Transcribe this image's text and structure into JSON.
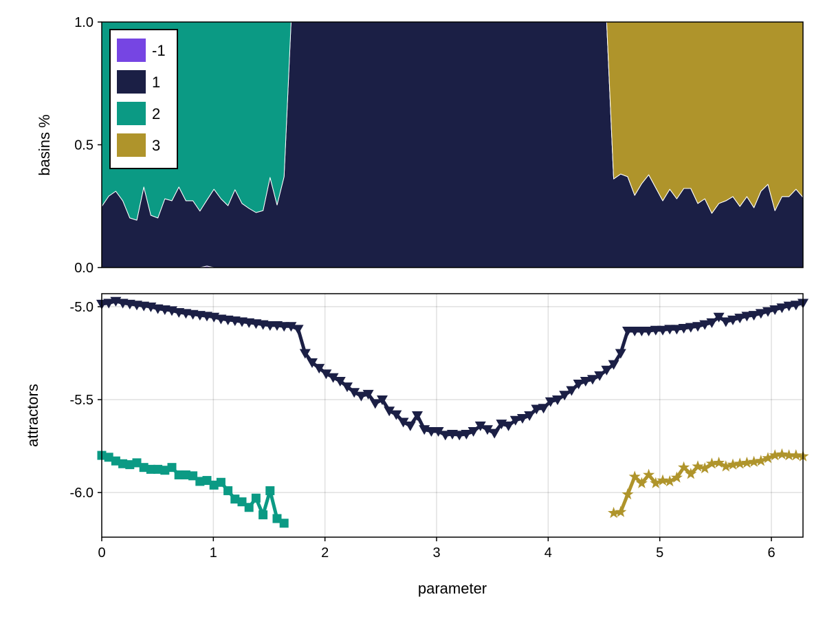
{
  "chart_data": [
    {
      "type": "area",
      "stacked": true,
      "ylabel": "basins %",
      "xlabel": "",
      "xlim": [
        0,
        6.2832
      ],
      "ylim": [
        0,
        1
      ],
      "yticks": [
        "0.0",
        "0.5",
        "1.0"
      ],
      "grid": false,
      "legend_placement": "top-left",
      "x": {
        "start": 0,
        "stop": 6.2832,
        "length": 101
      },
      "series": [
        {
          "name": "-1",
          "color": "#7645e3",
          "values": [
            0,
            0,
            0,
            0,
            0,
            0,
            0,
            0,
            0,
            0,
            0,
            0,
            0,
            0,
            0,
            0.006,
            0,
            0,
            0,
            0,
            0,
            0,
            0,
            0,
            0,
            0,
            0,
            0,
            0,
            0,
            0,
            0,
            0,
            0,
            0,
            0,
            0,
            0,
            0,
            0,
            0,
            0,
            0,
            0,
            0,
            0,
            0,
            0,
            0,
            0,
            0,
            0,
            0,
            0,
            0,
            0,
            0,
            0,
            0,
            0,
            0,
            0,
            0,
            0,
            0,
            0,
            0,
            0,
            0,
            0,
            0,
            0,
            0,
            0,
            0,
            0,
            0,
            0,
            0,
            0,
            0,
            0,
            0,
            0,
            0,
            0,
            0,
            0,
            0,
            0,
            0,
            0,
            0,
            0,
            0,
            0,
            0,
            0,
            0,
            0,
            0
          ]
        },
        {
          "name": "1",
          "color": "#1b1f45",
          "values": [
            0.249,
            0.291,
            0.311,
            0.272,
            0.202,
            0.193,
            0.328,
            0.213,
            0.202,
            0.28,
            0.272,
            0.328,
            0.272,
            0.272,
            0.23,
            0.269,
            0.319,
            0.28,
            0.252,
            0.317,
            0.261,
            0.241,
            0.224,
            0.232,
            0.367,
            0.255,
            0.37,
            1,
            1,
            1,
            1,
            1,
            1,
            1,
            1,
            1,
            1,
            1,
            1,
            1,
            1,
            1,
            1,
            1,
            1,
            1,
            1,
            1,
            1,
            1,
            1,
            1,
            1,
            1,
            1,
            1,
            1,
            1,
            1,
            1,
            1,
            1,
            1,
            1,
            1,
            1,
            1,
            1,
            1,
            1,
            1,
            1,
            1,
            0.361,
            0.381,
            0.37,
            0.294,
            0.342,
            0.378,
            0.325,
            0.272,
            0.319,
            0.28,
            0.322,
            0.322,
            0.261,
            0.28,
            0.221,
            0.261,
            0.272,
            0.289,
            0.249,
            0.289,
            0.244,
            0.311,
            0.339,
            0.232,
            0.289,
            0.289,
            0.319,
            0.286
          ]
        },
        {
          "name": "2",
          "color": "#0b9a84",
          "values": [
            0.751,
            0.709,
            0.689,
            0.728,
            0.798,
            0.807,
            0.672,
            0.787,
            0.798,
            0.72,
            0.728,
            0.672,
            0.728,
            0.728,
            0.77,
            0.725,
            0.681,
            0.72,
            0.748,
            0.683,
            0.739,
            0.759,
            0.776,
            0.768,
            0.633,
            0.745,
            0.63,
            0,
            0,
            0,
            0,
            0,
            0,
            0,
            0,
            0,
            0,
            0,
            0,
            0,
            0,
            0,
            0,
            0,
            0,
            0,
            0,
            0,
            0,
            0,
            0,
            0,
            0,
            0,
            0,
            0,
            0,
            0,
            0,
            0,
            0,
            0,
            0,
            0,
            0,
            0,
            0,
            0,
            0,
            0,
            0,
            0,
            0,
            0,
            0,
            0,
            0,
            0,
            0,
            0,
            0,
            0,
            0,
            0,
            0,
            0,
            0,
            0,
            0,
            0,
            0,
            0,
            0,
            0,
            0,
            0,
            0,
            0,
            0,
            0,
            0
          ]
        },
        {
          "name": "3",
          "color": "#af942b",
          "values": [
            0,
            0,
            0,
            0,
            0,
            0,
            0,
            0,
            0,
            0,
            0,
            0,
            0,
            0,
            0,
            0,
            0,
            0,
            0,
            0,
            0,
            0,
            0,
            0,
            0,
            0,
            0,
            0,
            0,
            0,
            0,
            0,
            0,
            0,
            0,
            0,
            0,
            0,
            0,
            0,
            0,
            0,
            0,
            0,
            0,
            0,
            0,
            0,
            0,
            0,
            0,
            0,
            0,
            0,
            0,
            0,
            0,
            0,
            0,
            0,
            0,
            0,
            0,
            0,
            0,
            0,
            0,
            0,
            0,
            0,
            0,
            0,
            0,
            0.639,
            0.619,
            0.63,
            0.706,
            0.658,
            0.622,
            0.675,
            0.728,
            0.681,
            0.72,
            0.678,
            0.678,
            0.739,
            0.72,
            0.779,
            0.739,
            0.728,
            0.711,
            0.751,
            0.711,
            0.756,
            0.689,
            0.661,
            0.768,
            0.711,
            0.711,
            0.681,
            0.714
          ]
        }
      ]
    },
    {
      "type": "line",
      "ylabel": "attractors",
      "xlabel": "parameter",
      "xlim": [
        0,
        6.2832
      ],
      "ylim": [
        -6.24,
        -4.93
      ],
      "xticks": [
        "0",
        "1",
        "2",
        "3",
        "4",
        "5",
        "6"
      ],
      "yticks": [
        "-5.0",
        "-5.5",
        "-6.0"
      ],
      "grid": true,
      "x_step": 0.062832,
      "series": [
        {
          "key": "1",
          "color": "#1b1f45",
          "marker": "triangle-down",
          "x_start": 0,
          "values": [
            -4.985,
            -4.98,
            -4.97,
            -4.98,
            -4.985,
            -4.99,
            -4.995,
            -5.0,
            -5.01,
            -5.015,
            -5.02,
            -5.03,
            -5.035,
            -5.04,
            -5.045,
            -5.05,
            -5.055,
            -5.065,
            -5.07,
            -5.075,
            -5.08,
            -5.085,
            -5.09,
            -5.095,
            -5.1,
            -5.1,
            -5.105,
            -5.105,
            -5.12,
            -5.25,
            -5.3,
            -5.33,
            -5.36,
            -5.38,
            -5.4,
            -5.43,
            -5.46,
            -5.48,
            -5.47,
            -5.52,
            -5.5,
            -5.56,
            -5.58,
            -5.62,
            -5.64,
            -5.585,
            -5.66,
            -5.67,
            -5.67,
            -5.69,
            -5.685,
            -5.69,
            -5.685,
            -5.67,
            -5.64,
            -5.66,
            -5.68,
            -5.63,
            -5.64,
            -5.61,
            -5.6,
            -5.585,
            -5.55,
            -5.545,
            -5.51,
            -5.5,
            -5.475,
            -5.45,
            -5.415,
            -5.4,
            -5.39,
            -5.37,
            -5.34,
            -5.31,
            -5.25,
            -5.13,
            -5.13,
            -5.13,
            -5.13,
            -5.125,
            -5.125,
            -5.12,
            -5.12,
            -5.115,
            -5.11,
            -5.105,
            -5.095,
            -5.085,
            -5.055,
            -5.08,
            -5.07,
            -5.06,
            -5.05,
            -5.045,
            -5.035,
            -5.025,
            -5.015,
            -5.005,
            -4.995,
            -4.99,
            -4.98
          ]
        },
        {
          "key": "2",
          "color": "#0b9a84",
          "marker": "square",
          "x_start": 0,
          "values": [
            -5.8,
            -5.81,
            -5.83,
            -5.845,
            -5.85,
            -5.84,
            -5.865,
            -5.875,
            -5.875,
            -5.88,
            -5.865,
            -5.905,
            -5.905,
            -5.91,
            -5.94,
            -5.935,
            -5.96,
            -5.945,
            -5.99,
            -6.035,
            -6.05,
            -6.08,
            -6.03,
            -6.12,
            -5.99,
            -6.14,
            -6.165
          ]
        },
        {
          "key": "3",
          "color": "#af942b",
          "marker": "star",
          "x_start": 4.5867,
          "values": [
            -6.11,
            -6.105,
            -6.01,
            -5.915,
            -5.95,
            -5.905,
            -5.95,
            -5.935,
            -5.94,
            -5.92,
            -5.865,
            -5.9,
            -5.86,
            -5.87,
            -5.845,
            -5.84,
            -5.86,
            -5.85,
            -5.845,
            -5.84,
            -5.835,
            -5.83,
            -5.815,
            -5.8,
            -5.795,
            -5.8,
            -5.8,
            -5.805
          ]
        }
      ]
    }
  ]
}
